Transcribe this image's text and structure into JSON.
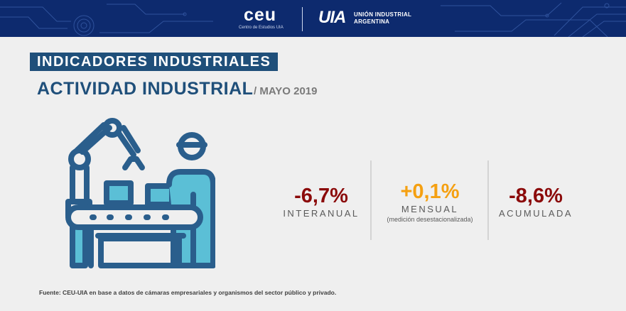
{
  "colors": {
    "banner": "#0d2a6e",
    "accent": "#1f4f7a",
    "negative": "#8b0a0a",
    "positive": "#f5a011",
    "illustration_outline": "#2a5e8c",
    "illustration_fill": "#5bbfd6"
  },
  "header": {
    "ceu_logo": "ceu",
    "ceu_subtitle": "Centro de Estudios UIA",
    "uia_logo": "UIA",
    "uia_line1": "UNIÓN INDUSTRIAL",
    "uia_line2": "ARGENTINA"
  },
  "section_label": "INDICADORES INDUSTRIALES",
  "title": "ACTIVIDAD INDUSTRIAL",
  "period": "/ MAYO 2019",
  "illustration": "industrial-assembly-line-icon",
  "metrics": [
    {
      "value": "-6,7%",
      "label": "INTERANUAL",
      "note": "",
      "trend": "negative"
    },
    {
      "value": "+0,1%",
      "label": "MENSUAL",
      "note": "(medición desestacionalizada)",
      "trend": "positive"
    },
    {
      "value": "-8,6%",
      "label": "ACUMULADA",
      "note": "",
      "trend": "negative"
    }
  ],
  "source": "Fuente: CEU-UIA en base a datos de cámaras empresariales y organismos del sector público y privado."
}
